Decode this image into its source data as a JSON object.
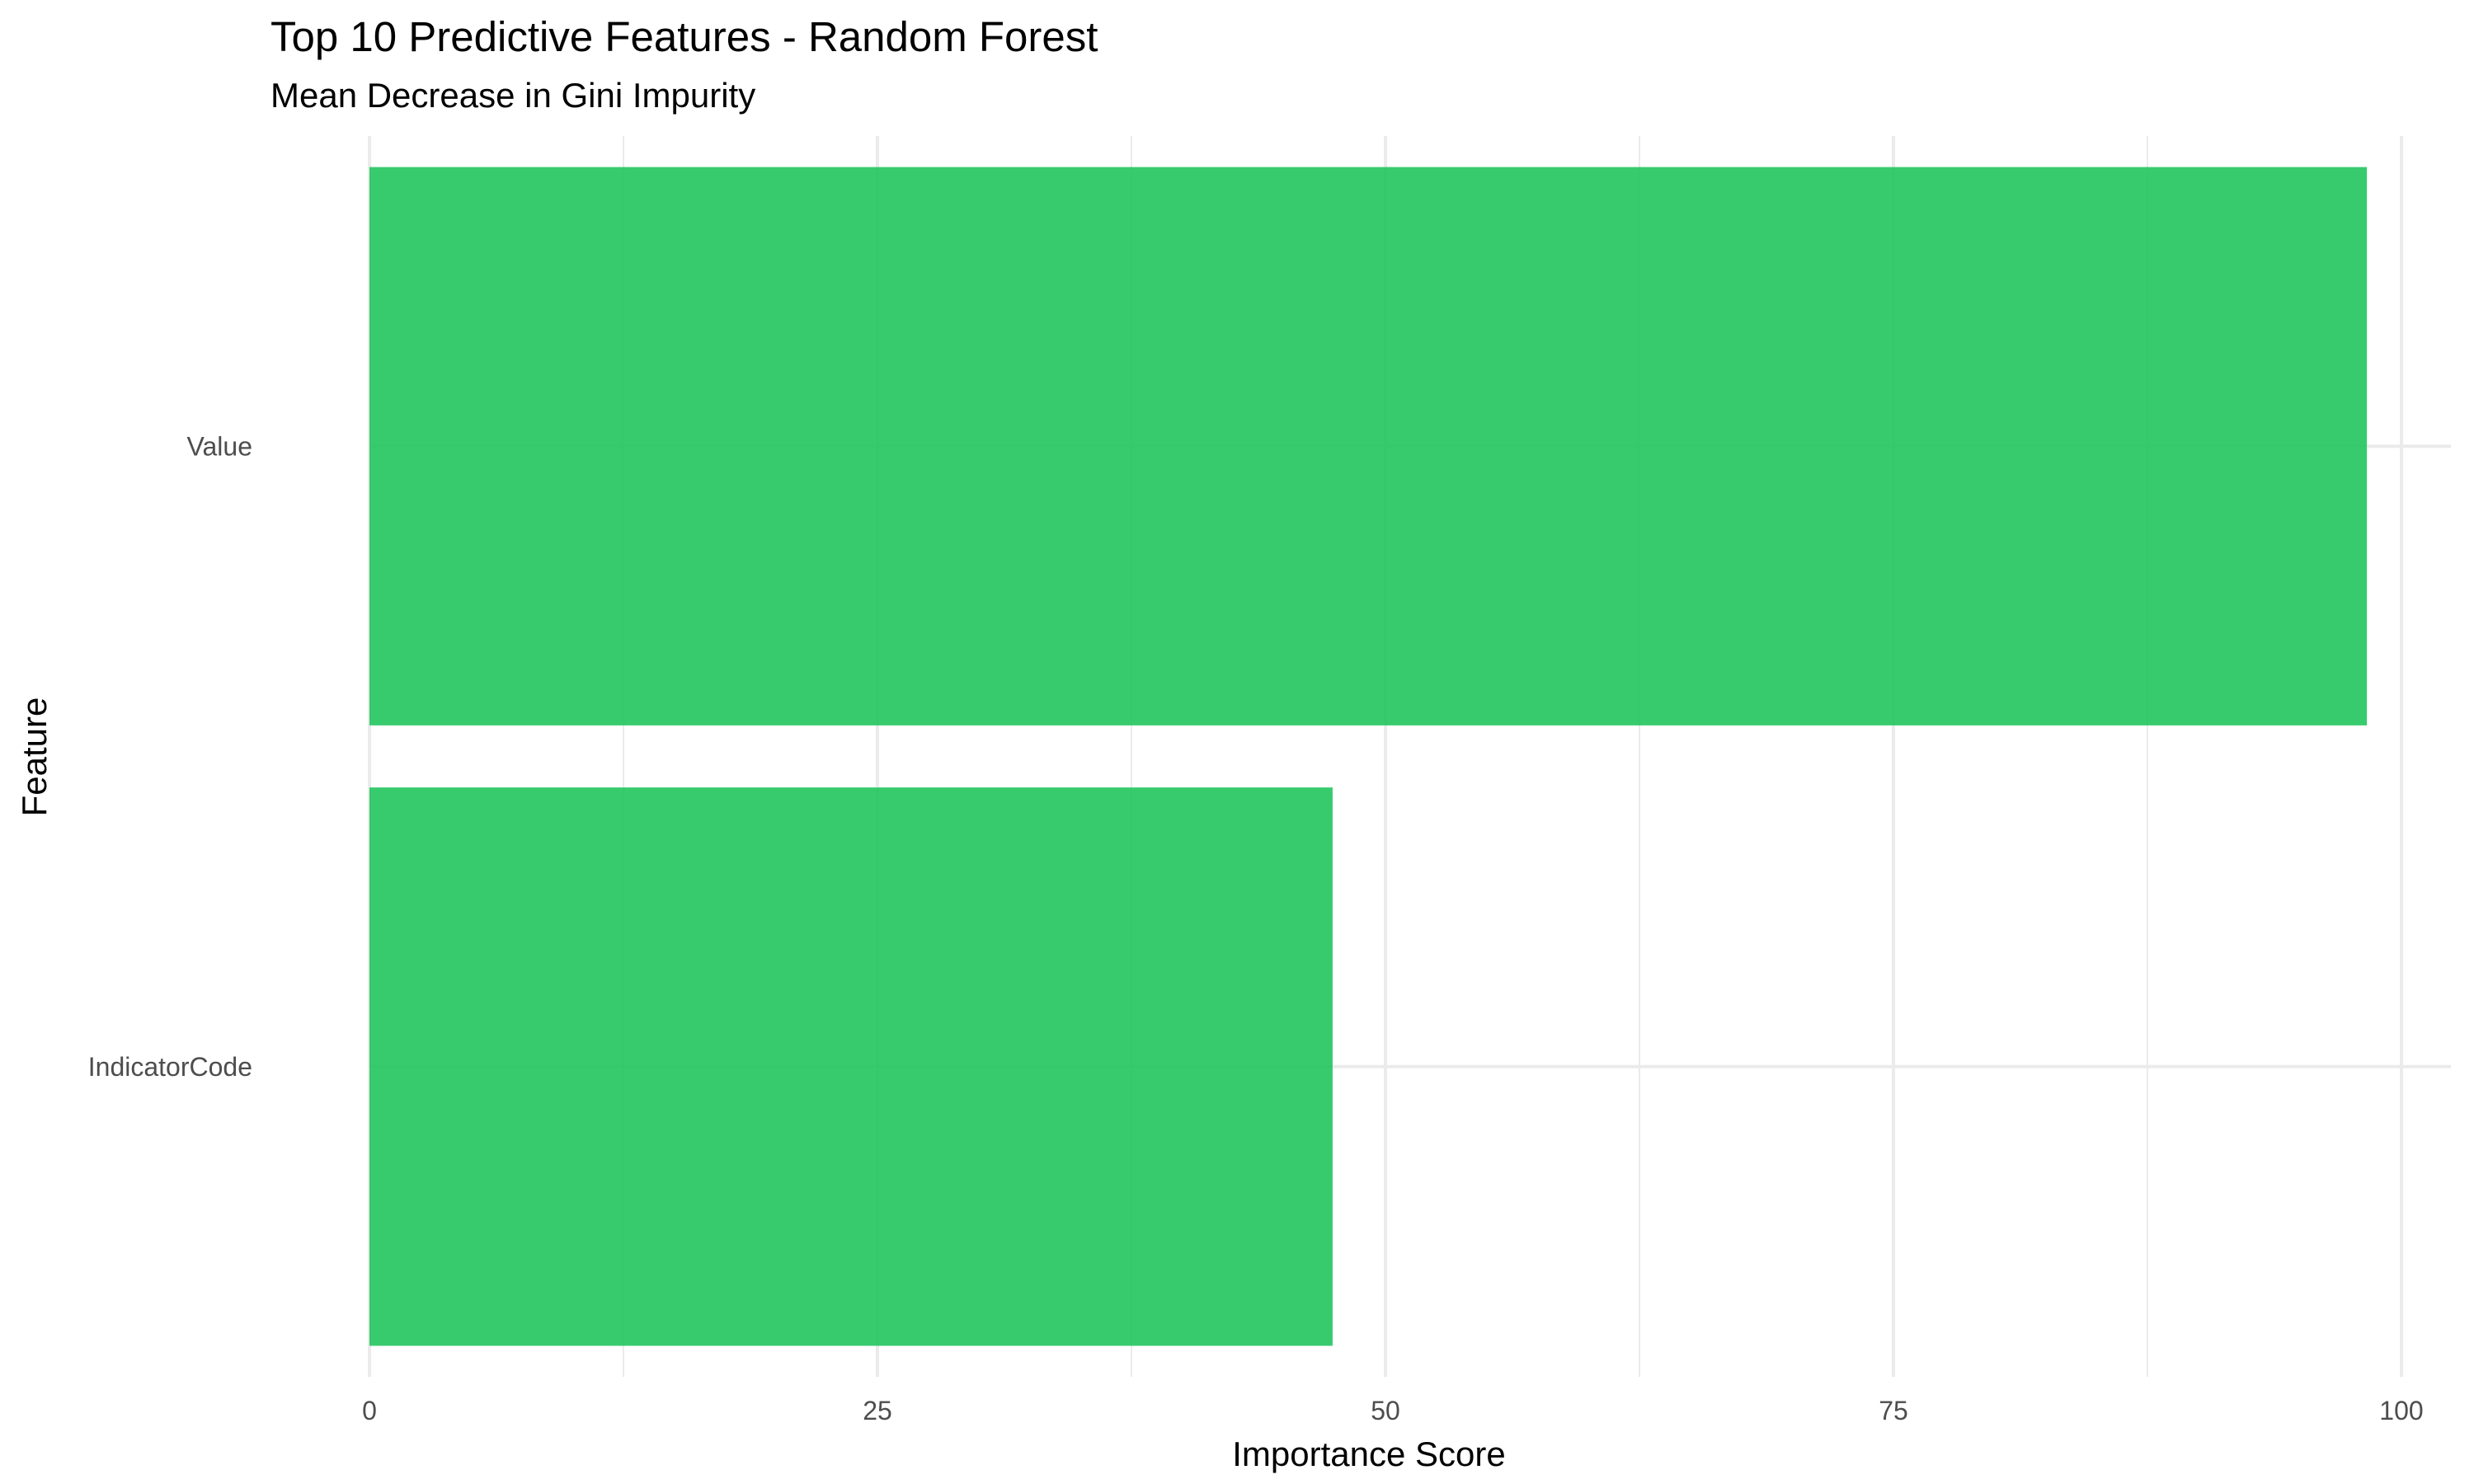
{
  "chart_data": {
    "type": "bar",
    "orientation": "horizontal",
    "title": "Top 10 Predictive Features - Random Forest",
    "subtitle": "Mean Decrease in Gini Impurity",
    "xlabel": "Importance Score",
    "ylabel": "Feature",
    "categories": [
      "Value",
      "IndicatorCode"
    ],
    "values": [
      98.3,
      47.4
    ],
    "xlim": [
      0,
      100
    ],
    "x_ticks": [
      0,
      25,
      50,
      75,
      100
    ],
    "x_minor_ticks": [
      12.5,
      37.5,
      62.5,
      87.5
    ],
    "grid": true,
    "legend": "none",
    "bar_color": "#22c55e"
  }
}
